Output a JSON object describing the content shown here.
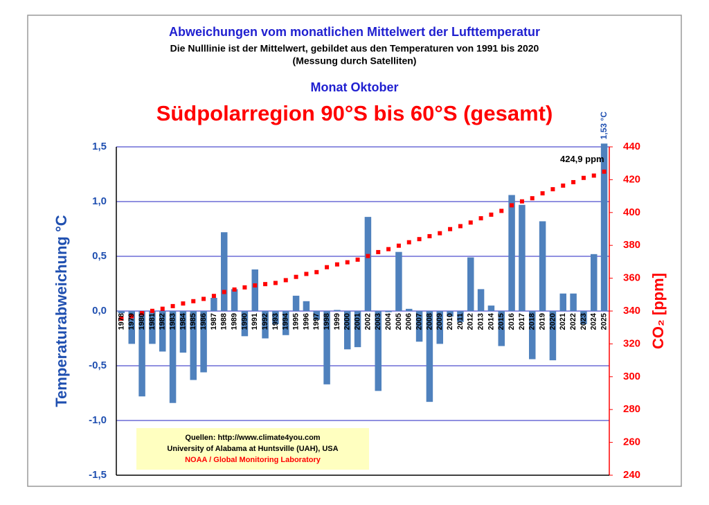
{
  "chart_data": {
    "type": "bar",
    "title": "Abweichungen vom monatlichen Mittelwert der Lufttemperatur",
    "subtitle": "Die Nulllinie ist der Mittelwert, gebildet aus den Temperaturen von 1991 bis 2020",
    "subtitle2": "(Messung durch Satelliten)",
    "month": "Monat Oktober",
    "region": "Südpolarregion 90°S bis 60°S (gesamt)",
    "y_label": "Temperaturabweichung °C",
    "y2_label": "CO₂ [ppm]",
    "categories": [
      "1978",
      "1979",
      "1980",
      "1981",
      "1982",
      "1983",
      "1984",
      "1985",
      "1986",
      "1987",
      "1988",
      "1989",
      "1990",
      "1991",
      "1992",
      "1993",
      "1994",
      "1995",
      "1996",
      "1997",
      "1998",
      "1999",
      "2000",
      "2001",
      "2002",
      "2003",
      "2004",
      "2005",
      "2006",
      "2007",
      "2008",
      "2009",
      "2010",
      "2011",
      "2012",
      "2013",
      "2014",
      "2015",
      "2016",
      "2017",
      "2018",
      "2019",
      "2020",
      "2021",
      "2022",
      "2023",
      "2024",
      "2025"
    ],
    "series": [
      {
        "color": "#4f81bd",
        "values": [
          -0.02,
          -0.3,
          -0.78,
          -0.3,
          -0.37,
          -0.84,
          -0.38,
          -0.63,
          -0.56,
          0.12,
          0.72,
          0.2,
          -0.23,
          0.38,
          -0.25,
          -0.12,
          -0.22,
          0.14,
          0.09,
          -0.08,
          -0.67,
          0.01,
          -0.35,
          -0.33,
          0.86,
          -0.73,
          -0.01,
          0.54,
          0.02,
          -0.28,
          -0.83,
          -0.3,
          -0.05,
          -0.1,
          0.49,
          0.2,
          0.05,
          -0.32,
          1.06,
          0.97,
          -0.44,
          0.82,
          -0.45,
          0.16,
          0.16,
          -0.12,
          0.52,
          1.53
        ],
        "value_labels": [
          null,
          null,
          null,
          null,
          null,
          null,
          null,
          null,
          null,
          null,
          null,
          null,
          null,
          null,
          null,
          null,
          null,
          null,
          null,
          null,
          null,
          null,
          null,
          null,
          null,
          null,
          null,
          null,
          null,
          null,
          null,
          null,
          null,
          null,
          null,
          null,
          null,
          null,
          null,
          null,
          null,
          null,
          null,
          null,
          null,
          null,
          null,
          "1,53 °C"
        ]
      },
      {
        "type": "scatter",
        "axis": "y2",
        "color": "#ff0000",
        "values": [
          335.4,
          336.8,
          338.7,
          340.1,
          341.4,
          343.0,
          344.6,
          346.0,
          347.4,
          349.2,
          351.6,
          353.1,
          354.4,
          355.6,
          356.4,
          357.1,
          358.8,
          360.8,
          362.6,
          363.7,
          366.7,
          368.4,
          369.7,
          371.3,
          373.5,
          375.9,
          377.7,
          379.8,
          381.9,
          383.8,
          385.6,
          387.4,
          389.9,
          391.7,
          393.9,
          396.5,
          398.7,
          401.0,
          404.4,
          406.8,
          408.7,
          411.7,
          414.2,
          416.4,
          418.5,
          421.1,
          422.5,
          424.9
        ],
        "value_labels": [
          null,
          null,
          null,
          null,
          null,
          null,
          null,
          null,
          null,
          null,
          null,
          null,
          null,
          null,
          null,
          null,
          null,
          null,
          null,
          null,
          null,
          null,
          null,
          null,
          null,
          null,
          null,
          null,
          null,
          null,
          null,
          null,
          null,
          null,
          null,
          null,
          null,
          null,
          null,
          null,
          null,
          null,
          null,
          null,
          null,
          null,
          null,
          "424,9 ppm"
        ]
      }
    ],
    "ylim": [
      -1.5,
      1.5
    ],
    "yticks": [
      {
        "value": -1.5,
        "label": "-1,5"
      },
      {
        "value": -1.0,
        "label": "-1,0"
      },
      {
        "value": -0.5,
        "label": "-0,5"
      },
      {
        "value": 0,
        "label": "0,0"
      },
      {
        "value": 0.5,
        "label": "0,5"
      },
      {
        "value": 1.0,
        "label": "1,0"
      },
      {
        "value": 1.5,
        "label": "1,5"
      }
    ],
    "y2lim": [
      240,
      440
    ],
    "y2ticks": [
      240,
      260,
      280,
      300,
      320,
      340,
      360,
      380,
      400,
      420,
      440
    ],
    "grid": true,
    "sources": [
      "Quellen: http://www.climate4you.com",
      "University of Alabama at Huntsville (UAH), USA",
      "NOAA / Global Monitoring Laboratory"
    ]
  }
}
